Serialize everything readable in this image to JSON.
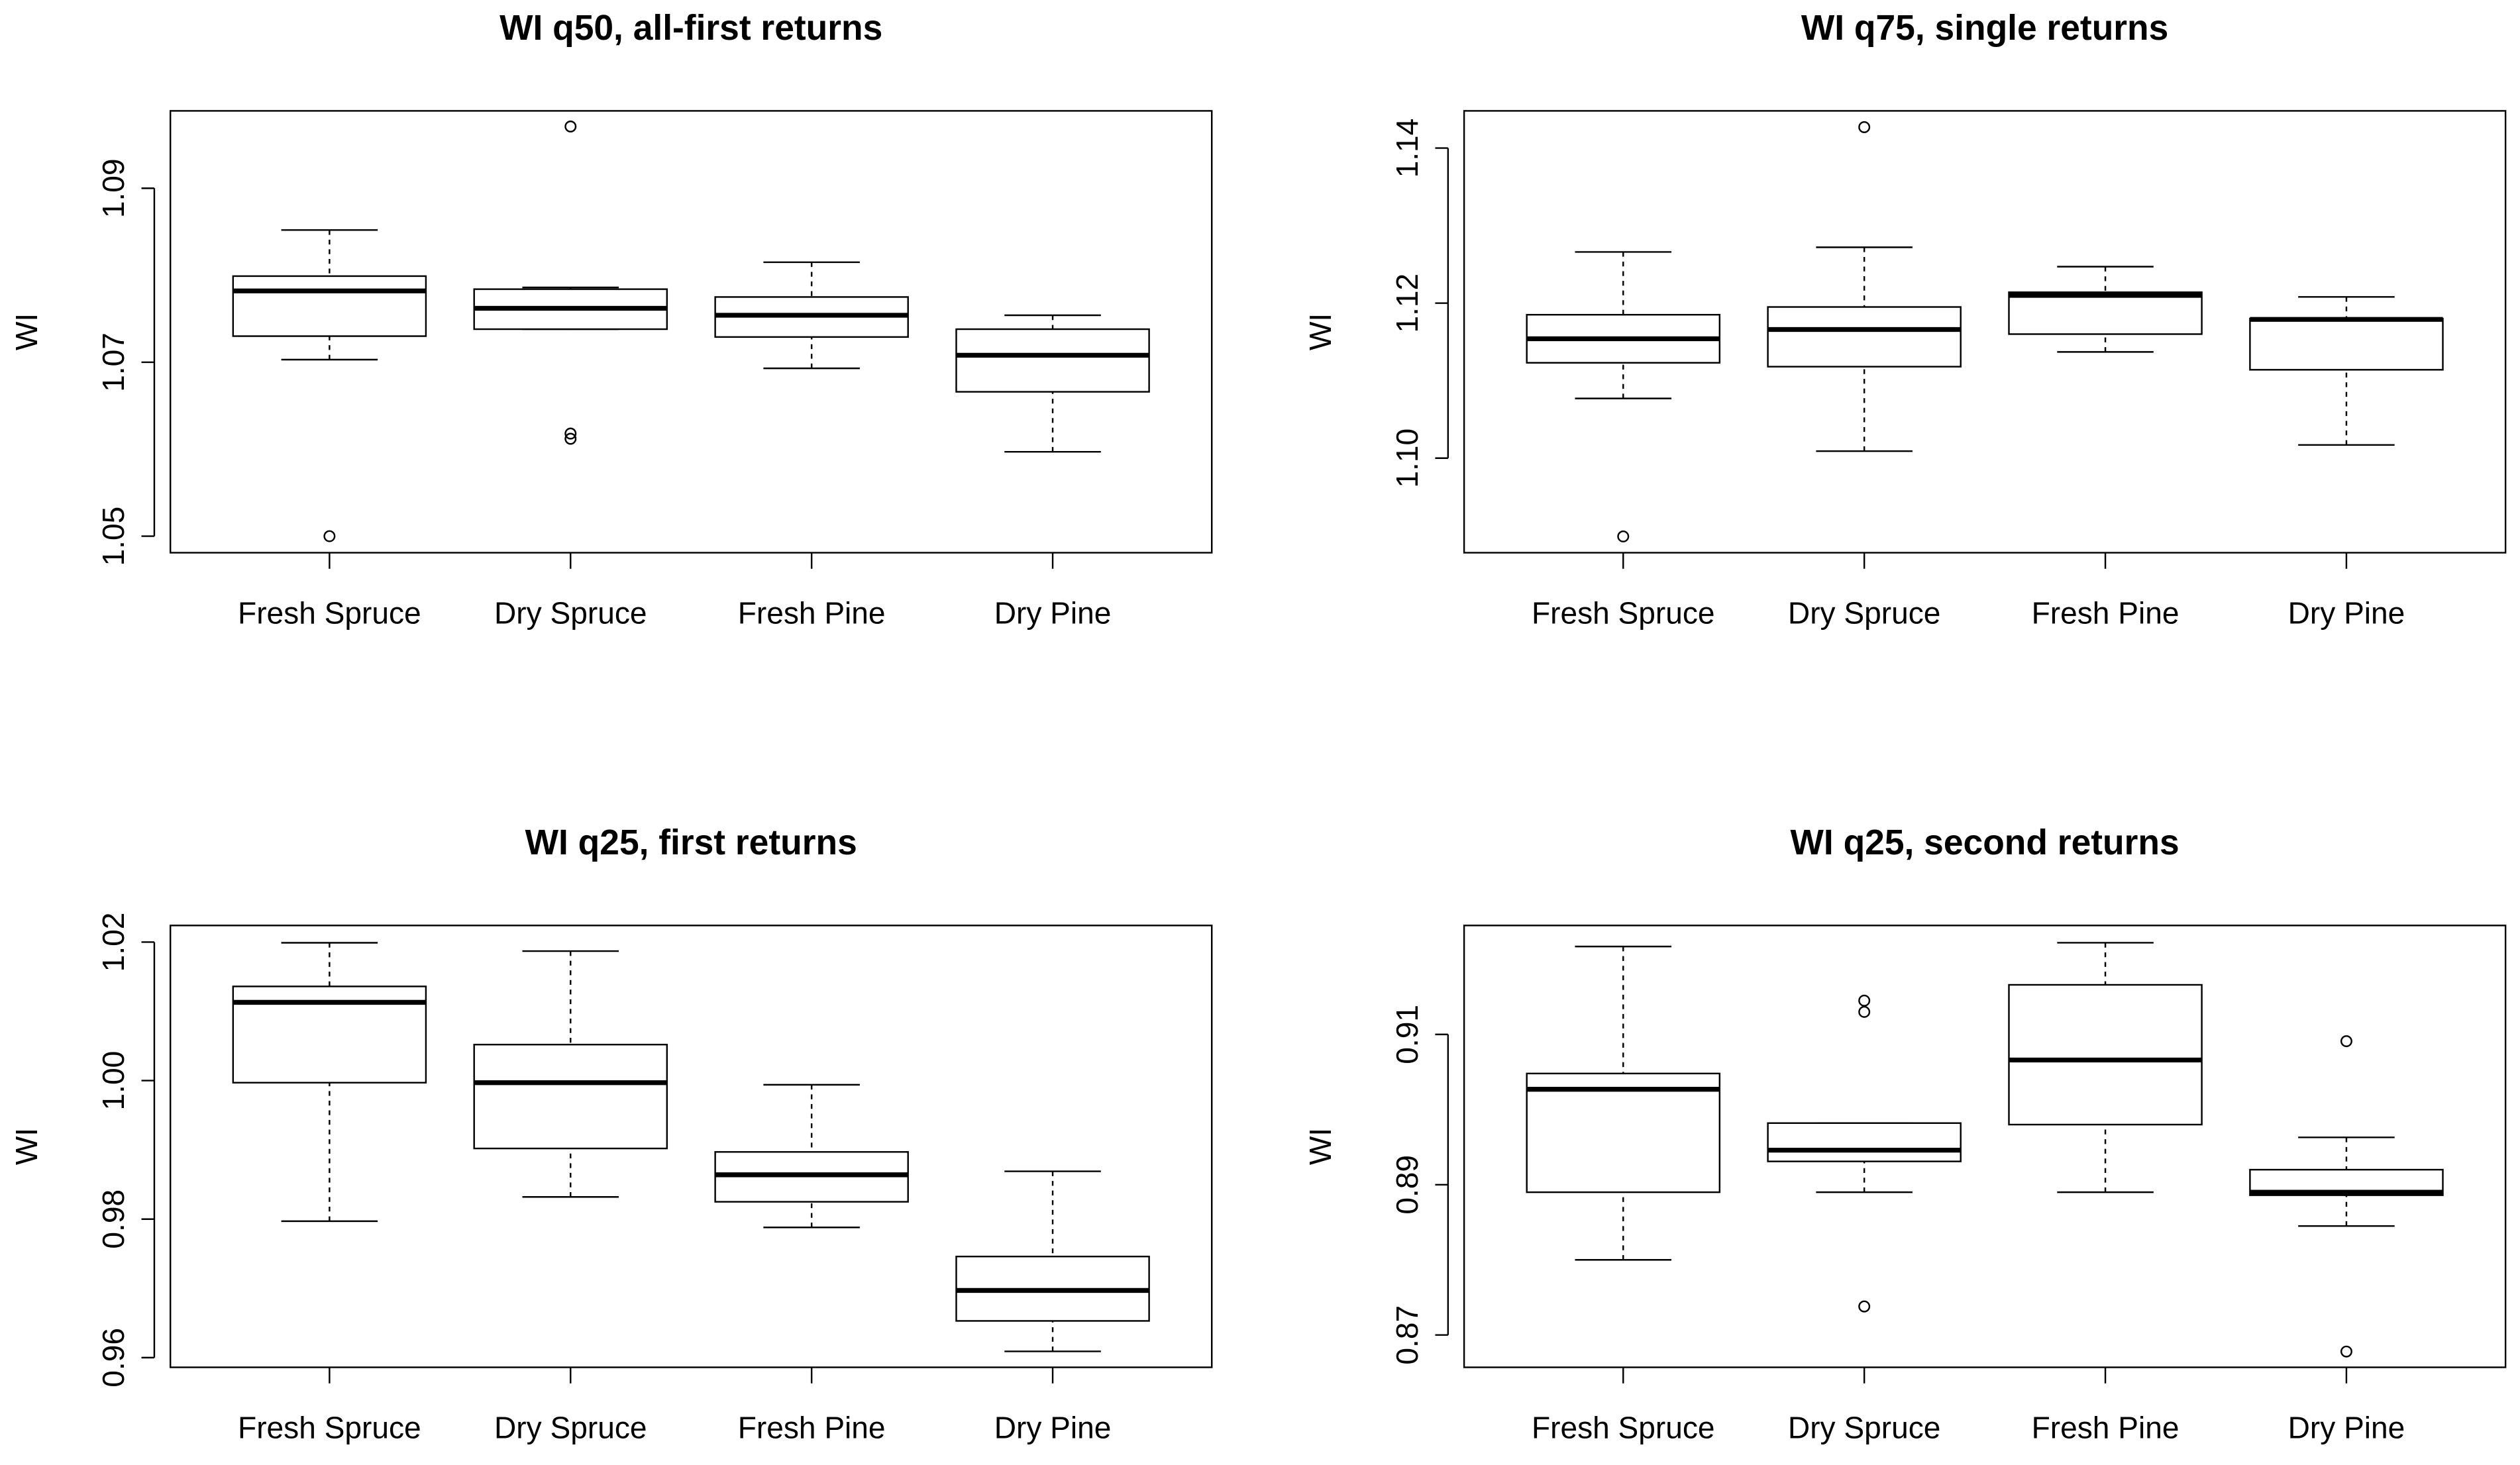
{
  "chart_data": [
    {
      "type": "box",
      "title": "WI q50, all-first returns",
      "y_label": "WI",
      "categories": [
        "Fresh Spruce",
        "Dry Spruce",
        "Fresh Pine",
        "Dry Pine"
      ],
      "boxes": [
        {
          "whislo": 1.0703,
          "q1": 1.073,
          "med": 1.0782,
          "q3": 1.0799,
          "whishi": 1.0852,
          "fliers": [
            1.05
          ]
        },
        {
          "whislo": 1.0738,
          "q1": 1.0738,
          "med": 1.0762,
          "q3": 1.0784,
          "whishi": 1.0786,
          "fliers": [
            1.0971,
            1.0618,
            1.0612
          ]
        },
        {
          "whislo": 1.0693,
          "q1": 1.0729,
          "med": 1.0754,
          "q3": 1.0775,
          "whishi": 1.0815,
          "fliers": []
        },
        {
          "whislo": 1.0597,
          "q1": 1.0666,
          "med": 1.0708,
          "q3": 1.0738,
          "whishi": 1.0754,
          "fliers": []
        }
      ],
      "ylim": [
        1.0481,
        1.0989
      ],
      "yticks": [
        1.05,
        1.07,
        1.09
      ]
    },
    {
      "type": "box",
      "title": "WI q75, single returns",
      "y_label": "WI",
      "categories": [
        "Fresh Spruce",
        "Dry Spruce",
        "Fresh Pine",
        "Dry Pine"
      ],
      "boxes": [
        {
          "whislo": 1.1077,
          "q1": 1.1123,
          "med": 1.1154,
          "q3": 1.1185,
          "whishi": 1.1266,
          "fliers": [
            1.0899
          ]
        },
        {
          "whislo": 1.1009,
          "q1": 1.1118,
          "med": 1.1166,
          "q3": 1.1195,
          "whishi": 1.1272,
          "fliers": [
            1.1427
          ]
        },
        {
          "whislo": 1.1137,
          "q1": 1.116,
          "med": 1.121,
          "q3": 1.1214,
          "whishi": 1.1247,
          "fliers": []
        },
        {
          "whislo": 1.1017,
          "q1": 1.1114,
          "med": 1.1179,
          "q3": 1.118,
          "whishi": 1.1208,
          "fliers": []
        }
      ],
      "ylim": [
        1.0878,
        1.1448
      ],
      "yticks": [
        {
          "value": 1.1,
          "label": "1.10"
        },
        1.12,
        1.14
      ]
    },
    {
      "type": "box",
      "title": "WI q25, first returns",
      "y_label": "WI",
      "categories": [
        "Fresh Spruce",
        "Dry Spruce",
        "Fresh Pine",
        "Dry Pine"
      ],
      "boxes": [
        {
          "whislo": 0.9797,
          "q1": 0.9997,
          "med": 1.0113,
          "q3": 1.0136,
          "whishi": 1.0199,
          "fliers": []
        },
        {
          "whislo": 0.9832,
          "q1": 0.9902,
          "med": 0.9997,
          "q3": 1.0052,
          "whishi": 1.0187,
          "fliers": []
        },
        {
          "whislo": 0.9788,
          "q1": 0.9825,
          "med": 0.9864,
          "q3": 0.9897,
          "whishi": 0.9994,
          "fliers": []
        },
        {
          "whislo": 0.9609,
          "q1": 0.9653,
          "med": 0.9697,
          "q3": 0.9746,
          "whishi": 0.9869,
          "fliers": []
        }
      ],
      "ylim": [
        0.9586,
        1.0224
      ],
      "yticks": [
        0.96,
        0.98,
        {
          "value": 1,
          "label": "1.00"
        },
        1.02
      ]
    },
    {
      "type": "box",
      "title": "WI q25, second returns",
      "y_label": "WI",
      "categories": [
        "Fresh Spruce",
        "Dry Spruce",
        "Fresh Pine",
        "Dry Pine"
      ],
      "boxes": [
        {
          "whislo": 0.88,
          "q1": 0.889,
          "med": 0.9027,
          "q3": 0.9048,
          "whishi": 0.9217,
          "fliers": []
        },
        {
          "whislo": 0.889,
          "q1": 0.8931,
          "med": 0.8946,
          "q3": 0.8982,
          "whishi": 0.8982,
          "fliers": [
            0.9145,
            0.913,
            0.8738
          ]
        },
        {
          "whislo": 0.889,
          "q1": 0.898,
          "med": 0.9066,
          "q3": 0.9166,
          "whishi": 0.9222,
          "fliers": []
        },
        {
          "whislo": 0.8845,
          "q1": 0.8886,
          "med": 0.889,
          "q3": 0.892,
          "whishi": 0.8963,
          "fliers": [
            0.9091,
            0.8678
          ]
        }
      ],
      "ylim": [
        0.8657,
        0.9245
      ],
      "yticks": [
        0.87,
        0.89,
        0.91
      ]
    }
  ]
}
